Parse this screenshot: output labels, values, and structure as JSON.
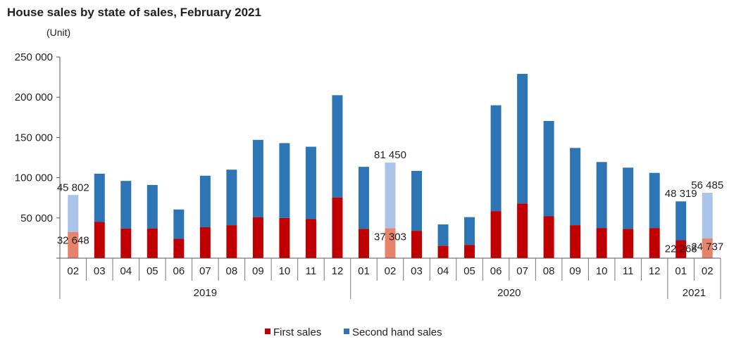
{
  "chart_data": {
    "type": "bar",
    "stacked": true,
    "title": "House sales by state of sales, February 2021",
    "unit": "(Unit)",
    "ylim": [
      0,
      250000
    ],
    "yticks": [
      {
        "value": 0,
        "label": ""
      },
      {
        "value": 50000,
        "label": "50 000"
      },
      {
        "value": 100000,
        "label": "100 000"
      },
      {
        "value": 150000,
        "label": "150 000"
      },
      {
        "value": 200000,
        "label": "200 000"
      },
      {
        "value": 250000,
        "label": "250 000"
      }
    ],
    "categories": [
      "02",
      "03",
      "04",
      "05",
      "06",
      "07",
      "08",
      "09",
      "10",
      "11",
      "12",
      "01",
      "02",
      "03",
      "04",
      "05",
      "06",
      "07",
      "08",
      "09",
      "10",
      "11",
      "12",
      "01",
      "02"
    ],
    "year_groups": [
      {
        "label": "2019",
        "start": 0,
        "end": 10
      },
      {
        "label": "2020",
        "start": 11,
        "end": 22
      },
      {
        "label": "2021",
        "start": 23,
        "end": 24
      }
    ],
    "highlighted": [
      0,
      12,
      24
    ],
    "series": [
      {
        "name": "First sales",
        "color": "#c00000",
        "light_color": "#e8836b",
        "values": [
          32648,
          45000,
          37000,
          37000,
          24000,
          38500,
          41000,
          51000,
          50000,
          48500,
          75500,
          36500,
          37303,
          34000,
          15500,
          16500,
          58500,
          68000,
          52000,
          41000,
          37500,
          36500,
          37500,
          22268,
          24737
        ]
      },
      {
        "name": "Second hand sales",
        "color": "#2e75b6",
        "light_color": "#a9c4e8",
        "values": [
          45802,
          60000,
          59000,
          54000,
          36500,
          64000,
          69000,
          96000,
          93000,
          90000,
          127000,
          77000,
          81450,
          74500,
          26500,
          34500,
          131500,
          161000,
          118500,
          96000,
          82000,
          76000,
          68500,
          48319,
          56485
        ]
      }
    ],
    "data_labels": [
      {
        "index": 0,
        "series": 1,
        "text": "45 802"
      },
      {
        "index": 0,
        "series": 0,
        "text": "32 648"
      },
      {
        "index": 12,
        "series": 1,
        "text": "81 450"
      },
      {
        "index": 12,
        "series": 0,
        "text": "37 303"
      },
      {
        "index": 23,
        "series": 1,
        "text": "48 319"
      },
      {
        "index": 23,
        "series": 0,
        "text": "22 268"
      },
      {
        "index": 24,
        "series": 1,
        "text": "56 485"
      },
      {
        "index": 24,
        "series": 0,
        "text": "24 737"
      }
    ],
    "legend_position": "bottom-center",
    "grid": false
  }
}
